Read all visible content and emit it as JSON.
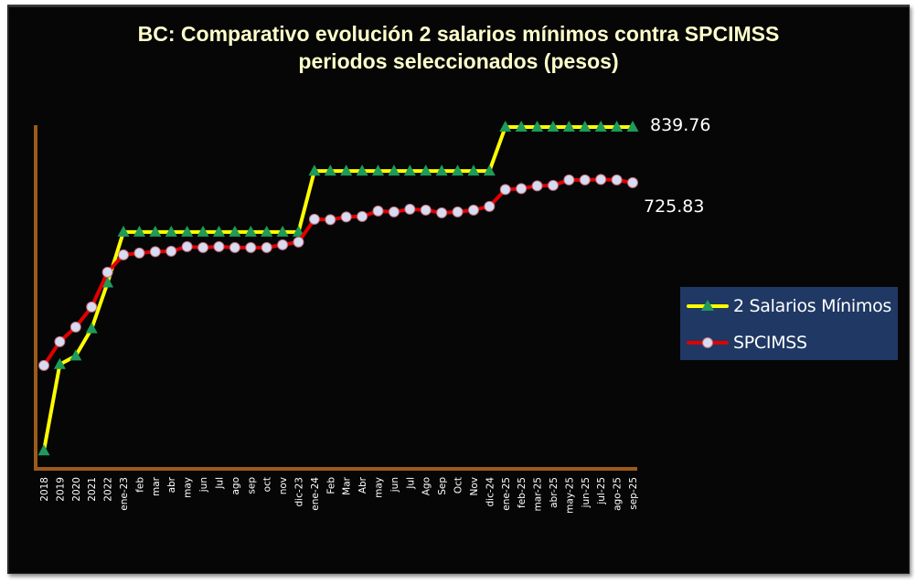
{
  "title": {
    "line1": "BC: Comparativo evolución 2 salarios mínimos contra SPCIMSS",
    "line2": "periodos seleccionados (pesos)"
  },
  "legend": {
    "items": [
      {
        "label": "2 Salarios Mínimos",
        "line_color": "#ffff00",
        "marker": "triangle",
        "marker_color": "#1e9a5a"
      },
      {
        "label": "SPCIMSS",
        "line_color": "#e00000",
        "marker": "circle",
        "marker_color": "#d8dcf0"
      }
    ]
  },
  "end_labels": {
    "salarios": "839.76",
    "spcimss": "725.83"
  },
  "colors": {
    "background": "#060606",
    "axis": "#9c5a1a",
    "title": "#ffffcc",
    "legend_bg": "#1f3864"
  },
  "chart_data": {
    "type": "line",
    "title": "BC: Comparativo evolución 2 salarios mínimos contra SPCIMSS periodos seleccionados (pesos)",
    "xlabel": "",
    "ylabel": "",
    "grid": false,
    "legend_position": "right",
    "ylim": [
      140,
      860
    ],
    "categories": [
      "2018",
      "2019",
      "2020",
      "2021",
      "2022",
      "ene-23",
      "feb",
      "mar",
      "abr",
      "may",
      "jun",
      "Jul",
      "ago",
      "sep",
      "oct",
      "nov",
      "dic-23",
      "ene-24",
      "Feb",
      "Mar",
      "Abr",
      "may",
      "jun",
      "Jul",
      "Ago",
      "Sep",
      "Oct",
      "Nov",
      "dic-24",
      "ene-25",
      "feb-25",
      "mar-25",
      "abr-25",
      "may-25",
      "jun-25",
      "jul-25",
      "ago-25",
      "sep-25"
    ],
    "series": [
      {
        "name": "2 Salarios Mínimos",
        "values": [
          176.72,
          353.44,
          371.12,
          426.78,
          520.68,
          624.82,
          624.82,
          624.82,
          624.82,
          624.82,
          624.82,
          624.82,
          624.82,
          624.82,
          624.82,
          624.82,
          624.82,
          749.78,
          749.78,
          749.78,
          749.78,
          749.78,
          749.78,
          749.78,
          749.78,
          749.78,
          749.78,
          749.78,
          749.78,
          839.76,
          839.76,
          839.76,
          839.76,
          839.76,
          839.76,
          839.76,
          839.76,
          839.76
        ]
      },
      {
        "name": "SPCIMSS",
        "values": [
          351.4,
          400.1,
          430.1,
          471.2,
          542.4,
          577.9,
          581.7,
          584.5,
          585.4,
          594.8,
          592.9,
          594.8,
          592.9,
          592.9,
          592.9,
          598.5,
          604.2,
          650.9,
          650.0,
          655.6,
          656.6,
          667.8,
          665.9,
          671.5,
          669.7,
          664.1,
          665.9,
          669.7,
          677.2,
          711.8,
          713.7,
          719.3,
          720.2,
          731.4,
          731.4,
          732.4,
          731.4,
          725.83
        ]
      }
    ],
    "annotations": [
      {
        "text": "839.76",
        "series": "2 Salarios Mínimos",
        "at": "sep-25"
      },
      {
        "text": "725.83",
        "series": "SPCIMSS",
        "at": "sep-25"
      }
    ]
  }
}
